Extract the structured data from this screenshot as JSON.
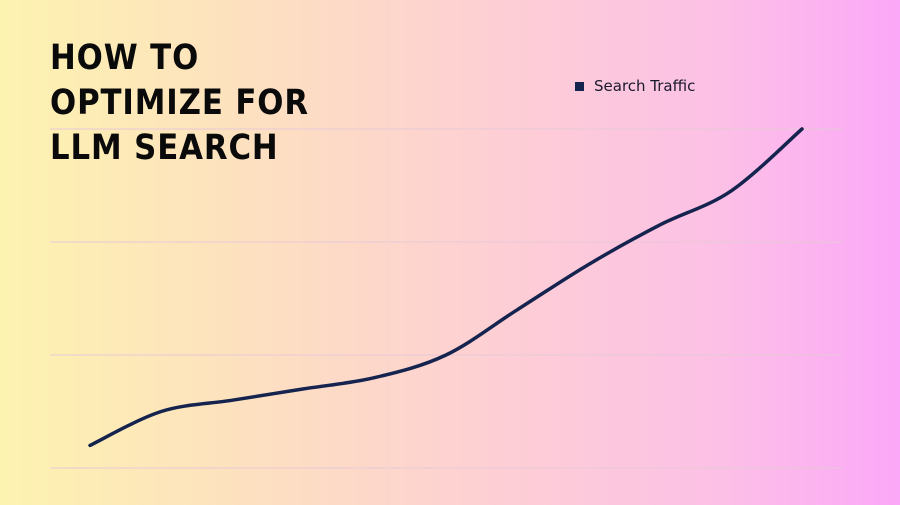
{
  "title_lines": [
    "HOW TO",
    "OPTIMIZE FOR",
    "LLM SEARCH"
  ],
  "colors": {
    "line": "#15234f",
    "grid": "#e6c9d6",
    "title": "#0a0a0a"
  },
  "chart_data": {
    "type": "line",
    "title": "",
    "xlabel": "",
    "ylabel": "",
    "ylim": [
      0,
      3
    ],
    "grid": true,
    "legend": "top-right",
    "x": [
      1,
      2,
      3,
      4,
      5,
      6,
      7,
      8,
      9,
      10,
      11
    ],
    "series": [
      {
        "name": "Search Traffic",
        "values": [
          0.2,
          0.5,
          0.6,
          0.7,
          0.8,
          1.0,
          1.4,
          1.8,
          2.15,
          2.45,
          3.0
        ]
      }
    ]
  }
}
